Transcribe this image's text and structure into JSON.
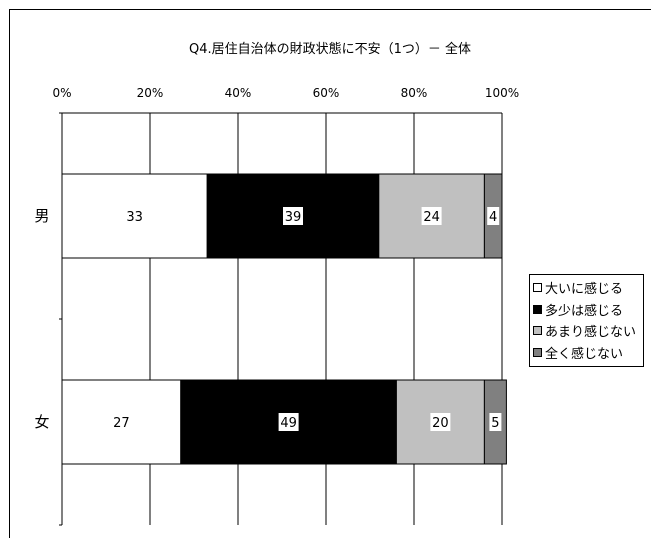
{
  "chart_data": {
    "type": "bar",
    "orientation": "horizontal",
    "stacked": "percent",
    "title": "Q4.居住自治体の財政状態に不安（1つ）－ 全体",
    "categories": [
      "男",
      "女"
    ],
    "series": [
      {
        "name": "大いに感じる",
        "values": [
          33,
          27
        ],
        "color": "#ffffff"
      },
      {
        "name": "多少は感じる",
        "values": [
          39,
          49
        ],
        "color": "#000000"
      },
      {
        "name": "あまり感じない",
        "values": [
          24,
          20
        ],
        "color": "#c0c0c0"
      },
      {
        "name": "全く感じない",
        "values": [
          4,
          5
        ],
        "color": "#808080"
      }
    ],
    "xlim": [
      0,
      100
    ],
    "x_ticks": [
      "0%",
      "20%",
      "40%",
      "60%",
      "80%",
      "100%"
    ],
    "grid": true,
    "legend_position": "right"
  }
}
